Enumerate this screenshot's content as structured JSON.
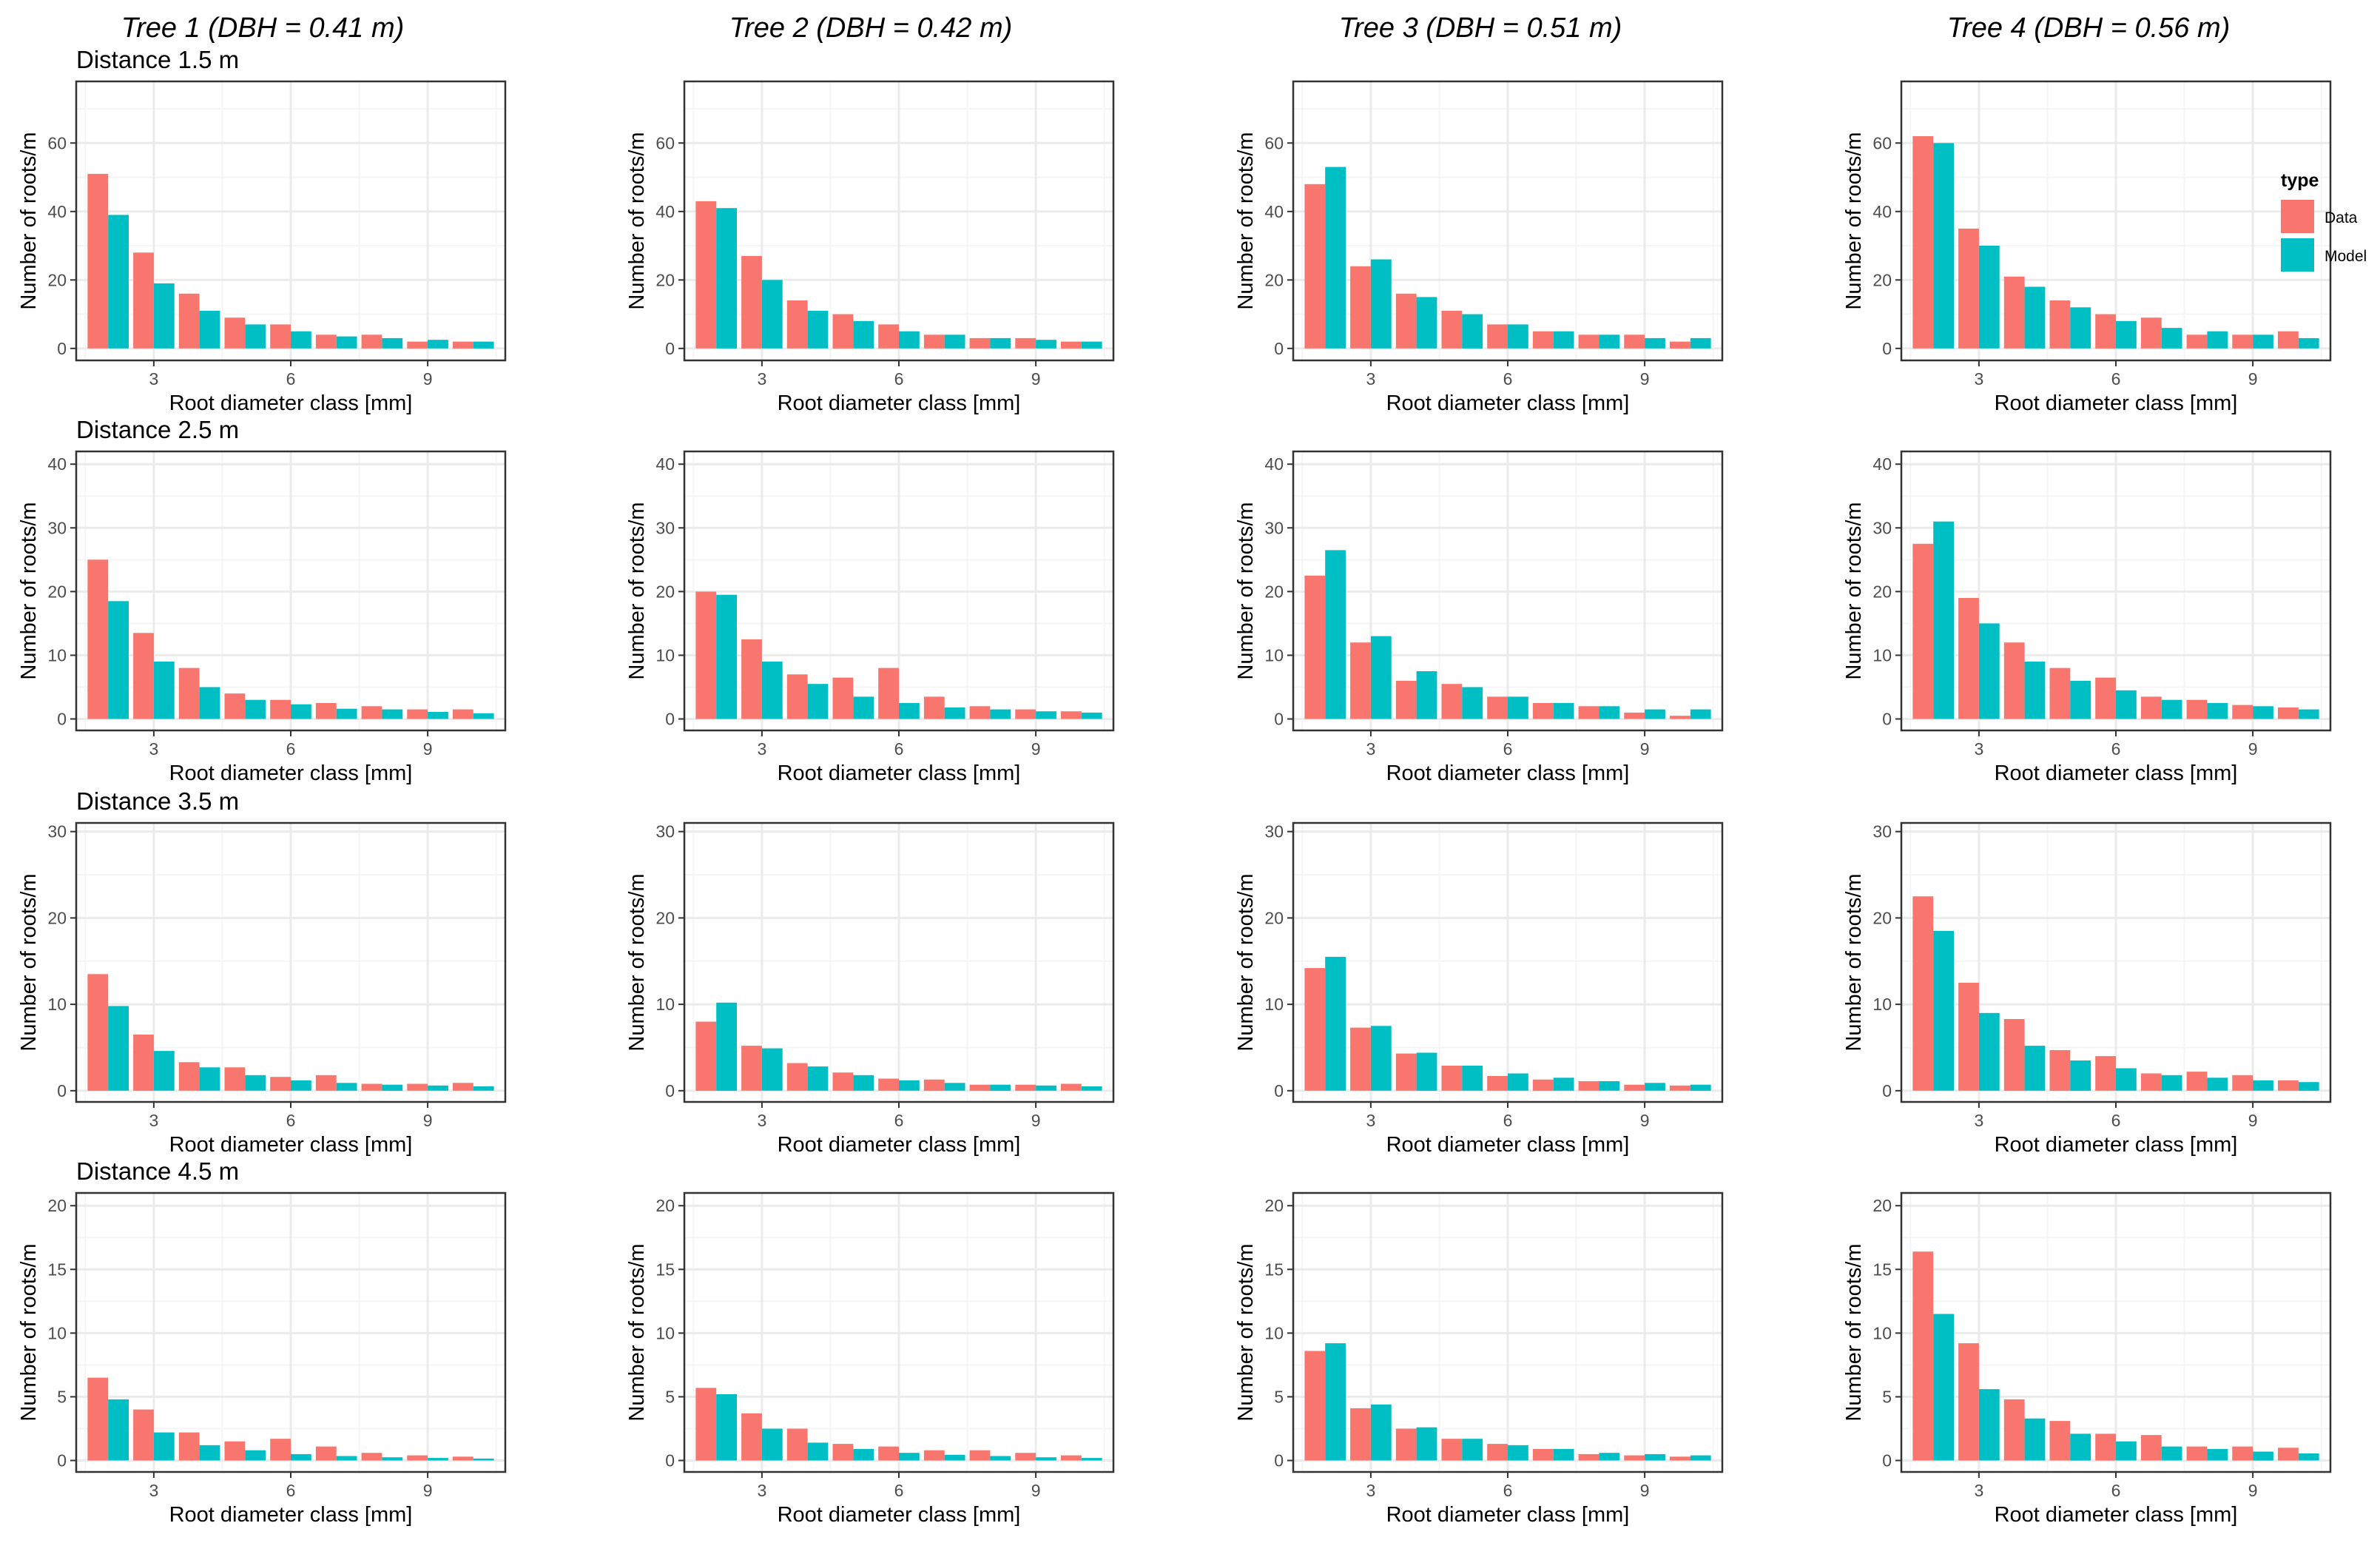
{
  "figure": {
    "column_titles": [
      "Tree 1 (DBH = 0.41 m)",
      "Tree 2 (DBH = 0.42 m)",
      "Tree 3 (DBH = 0.51 m)",
      "Tree 4 (DBH = 0.56 m)"
    ],
    "row_titles": [
      "Distance 1.5 m",
      "Distance 2.5 m",
      "Distance 3.5 m",
      "Distance 4.5 m"
    ]
  },
  "colors": {
    "data": "#F8766D",
    "model": "#00BFC4",
    "grid_major": "#EBEBEB",
    "grid_minor": "#F5F5F5",
    "frame": "#333333"
  },
  "legend": {
    "title": "type",
    "items": [
      "Data",
      "Model"
    ]
  },
  "chart_data": {
    "type": "bar",
    "layout": "facet grid, rows = distance, columns = tree",
    "xlabel": "Root diameter class [mm]",
    "ylabel": "Number of roots/m",
    "x": [
      2,
      3,
      4,
      5,
      6,
      7,
      8,
      9,
      10
    ],
    "x_ticks": [
      3,
      6,
      9
    ],
    "xlim": [
      1.3,
      10.7
    ],
    "rows": [
      {
        "distance": "1.5 m",
        "ylim": [
          -3.5,
          78
        ],
        "y_ticks": [
          0,
          20,
          40,
          60
        ],
        "panels": [
          {
            "tree": "Tree 1",
            "series": [
              {
                "name": "Data",
                "values": [
                  51,
                  28,
                  16,
                  9,
                  7,
                  4,
                  4,
                  2,
                  2
                ]
              },
              {
                "name": "Model",
                "values": [
                  39,
                  19,
                  11,
                  7,
                  5,
                  3.5,
                  3,
                  2.5,
                  2
                ]
              }
            ]
          },
          {
            "tree": "Tree 2",
            "series": [
              {
                "name": "Data",
                "values": [
                  43,
                  27,
                  14,
                  10,
                  7,
                  4,
                  3,
                  3,
                  2
                ]
              },
              {
                "name": "Model",
                "values": [
                  41,
                  20,
                  11,
                  8,
                  5,
                  4,
                  3,
                  2.5,
                  2
                ]
              }
            ]
          },
          {
            "tree": "Tree 3",
            "series": [
              {
                "name": "Data",
                "values": [
                  48,
                  24,
                  16,
                  11,
                  7,
                  5,
                  4,
                  4,
                  2
                ]
              },
              {
                "name": "Model",
                "values": [
                  53,
                  26,
                  15,
                  10,
                  7,
                  5,
                  4,
                  3,
                  3
                ]
              }
            ]
          },
          {
            "tree": "Tree 4",
            "series": [
              {
                "name": "Data",
                "values": [
                  62,
                  35,
                  21,
                  14,
                  10,
                  9,
                  4,
                  4,
                  5
                ]
              },
              {
                "name": "Model",
                "values": [
                  60,
                  30,
                  18,
                  12,
                  8,
                  6,
                  5,
                  4,
                  3
                ]
              }
            ]
          }
        ]
      },
      {
        "distance": "2.5 m",
        "ylim": [
          -1.8,
          42
        ],
        "y_ticks": [
          0,
          10,
          20,
          30,
          40
        ],
        "panels": [
          {
            "tree": "Tree 1",
            "series": [
              {
                "name": "Data",
                "values": [
                  25,
                  13.5,
                  8,
                  4,
                  3,
                  2.5,
                  2,
                  1.5,
                  1.5
                ]
              },
              {
                "name": "Model",
                "values": [
                  18.5,
                  9,
                  5,
                  3,
                  2.3,
                  1.6,
                  1.5,
                  1.1,
                  0.9
                ]
              }
            ]
          },
          {
            "tree": "Tree 2",
            "series": [
              {
                "name": "Data",
                "values": [
                  20,
                  12.5,
                  7,
                  6.5,
                  8,
                  3.5,
                  2,
                  1.5,
                  1.2
                ]
              },
              {
                "name": "Model",
                "values": [
                  19.5,
                  9,
                  5.5,
                  3.5,
                  2.5,
                  1.8,
                  1.5,
                  1.2,
                  1
                ]
              }
            ]
          },
          {
            "tree": "Tree 3",
            "series": [
              {
                "name": "Data",
                "values": [
                  22.5,
                  12,
                  6,
                  5.5,
                  3.5,
                  2.5,
                  2,
                  1,
                  0.5
                ]
              },
              {
                "name": "Model",
                "values": [
                  26.5,
                  13,
                  7.5,
                  5,
                  3.5,
                  2.5,
                  2,
                  1.5,
                  1.5
                ]
              }
            ]
          },
          {
            "tree": "Tree 4",
            "series": [
              {
                "name": "Data",
                "values": [
                  27.5,
                  19,
                  12,
                  8,
                  6.5,
                  3.5,
                  3,
                  2.2,
                  1.8
                ]
              },
              {
                "name": "Model",
                "values": [
                  31,
                  15,
                  9,
                  6,
                  4.5,
                  3,
                  2.5,
                  2,
                  1.5
                ]
              }
            ]
          }
        ]
      },
      {
        "distance": "3.5 m",
        "ylim": [
          -1.3,
          31
        ],
        "y_ticks": [
          0,
          10,
          20,
          30
        ],
        "panels": [
          {
            "tree": "Tree 1",
            "series": [
              {
                "name": "Data",
                "values": [
                  13.5,
                  6.5,
                  3.3,
                  2.7,
                  1.6,
                  1.8,
                  0.8,
                  0.8,
                  0.9
                ]
              },
              {
                "name": "Model",
                "values": [
                  9.8,
                  4.6,
                  2.7,
                  1.8,
                  1.2,
                  0.9,
                  0.7,
                  0.6,
                  0.5
                ]
              }
            ]
          },
          {
            "tree": "Tree 2",
            "series": [
              {
                "name": "Data",
                "values": [
                  8,
                  5.2,
                  3.2,
                  2.1,
                  1.4,
                  1.3,
                  0.7,
                  0.7,
                  0.8
                ]
              },
              {
                "name": "Model",
                "values": [
                  10.2,
                  4.9,
                  2.8,
                  1.8,
                  1.2,
                  0.9,
                  0.7,
                  0.6,
                  0.5
                ]
              }
            ]
          },
          {
            "tree": "Tree 3",
            "series": [
              {
                "name": "Data",
                "values": [
                  14.2,
                  7.3,
                  4.3,
                  2.9,
                  1.7,
                  1.3,
                  1.1,
                  0.7,
                  0.6
                ]
              },
              {
                "name": "Model",
                "values": [
                  15.5,
                  7.5,
                  4.4,
                  2.9,
                  2,
                  1.5,
                  1.1,
                  0.9,
                  0.7
                ]
              }
            ]
          },
          {
            "tree": "Tree 4",
            "series": [
              {
                "name": "Data",
                "values": [
                  22.5,
                  12.5,
                  8.3,
                  4.7,
                  4,
                  2,
                  2.2,
                  1.8,
                  1.2
                ]
              },
              {
                "name": "Model",
                "values": [
                  18.5,
                  9,
                  5.2,
                  3.5,
                  2.6,
                  1.8,
                  1.5,
                  1.2,
                  1
                ]
              }
            ]
          }
        ]
      },
      {
        "distance": "4.5 m",
        "ylim": [
          -0.9,
          21
        ],
        "y_ticks": [
          0,
          5,
          10,
          15,
          20
        ],
        "panels": [
          {
            "tree": "Tree 1",
            "series": [
              {
                "name": "Data",
                "values": [
                  6.5,
                  4,
                  2.2,
                  1.5,
                  1.7,
                  1.1,
                  0.6,
                  0.4,
                  0.3
                ]
              },
              {
                "name": "Model",
                "values": [
                  4.8,
                  2.2,
                  1.2,
                  0.8,
                  0.5,
                  0.35,
                  0.25,
                  0.2,
                  0.15
                ]
              }
            ]
          },
          {
            "tree": "Tree 2",
            "series": [
              {
                "name": "Data",
                "values": [
                  5.7,
                  3.7,
                  2.5,
                  1.3,
                  1.1,
                  0.8,
                  0.8,
                  0.6,
                  0.4
                ]
              },
              {
                "name": "Model",
                "values": [
                  5.2,
                  2.5,
                  1.4,
                  0.9,
                  0.6,
                  0.45,
                  0.35,
                  0.25,
                  0.2
                ]
              }
            ]
          },
          {
            "tree": "Tree 3",
            "series": [
              {
                "name": "Data",
                "values": [
                  8.6,
                  4.1,
                  2.5,
                  1.7,
                  1.3,
                  0.9,
                  0.5,
                  0.4,
                  0.3
                ]
              },
              {
                "name": "Model",
                "values": [
                  9.2,
                  4.4,
                  2.6,
                  1.7,
                  1.2,
                  0.9,
                  0.6,
                  0.5,
                  0.4
                ]
              }
            ]
          },
          {
            "tree": "Tree 4",
            "series": [
              {
                "name": "Data",
                "values": [
                  16.4,
                  9.2,
                  4.8,
                  3.1,
                  2.1,
                  2,
                  1.1,
                  1.1,
                  1
                ]
              },
              {
                "name": "Model",
                "values": [
                  11.5,
                  5.6,
                  3.3,
                  2.1,
                  1.5,
                  1.1,
                  0.9,
                  0.7,
                  0.55
                ]
              }
            ]
          }
        ]
      }
    ]
  }
}
